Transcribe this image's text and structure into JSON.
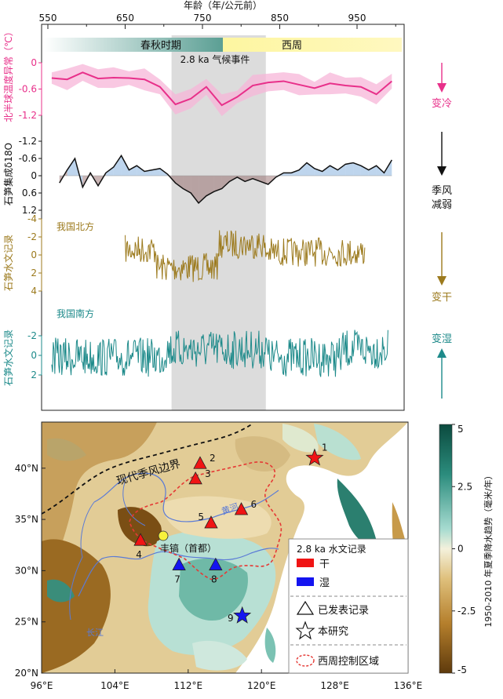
{
  "chart_data": {
    "type": "line",
    "top_axis": {
      "label": "年龄（年/公元前）",
      "ticks": [
        550,
        650,
        750,
        850,
        950
      ],
      "range": [
        550,
        1000
      ]
    },
    "periods": [
      {
        "name": "春秋时期",
        "from": 555,
        "to": 770,
        "color": "#5b9f94"
      },
      {
        "name": "西周",
        "from": 770,
        "to": 1000,
        "color": "#fdf6a0"
      }
    ],
    "event": {
      "label": "2.8 ka 气候事件",
      "from": 710,
      "to": 832
    },
    "panels": [
      {
        "id": "temp",
        "ylabel": "北半球温度异常（℃）",
        "ticks": [
          "0",
          "-0.6",
          "-1.2"
        ],
        "tick_values": [
          0,
          -0.6,
          -1.2
        ],
        "color": "#e8308a",
        "annotation": "变冷",
        "years": [
          555,
          575,
          595,
          615,
          635,
          655,
          675,
          695,
          715,
          735,
          755,
          775,
          795,
          815,
          835,
          855,
          875,
          895,
          915,
          935,
          955,
          975,
          995
        ],
        "values": [
          -0.35,
          -0.38,
          -0.22,
          -0.36,
          -0.34,
          -0.35,
          -0.38,
          -0.55,
          -0.95,
          -0.82,
          -0.55,
          -0.97,
          -0.78,
          -0.52,
          -0.45,
          -0.42,
          -0.5,
          -0.58,
          -0.47,
          -0.52,
          -0.55,
          -0.72,
          -0.42
        ]
      },
      {
        "id": "d18o",
        "ylabel": "石笋集成δ18O",
        "ticks": [
          "-1.2",
          "-0.6",
          "0",
          "0.6",
          "1.2"
        ],
        "tick_values": [
          -1.2,
          -0.6,
          0,
          0.6,
          1.2
        ],
        "color": "#111111",
        "annotation": "季风\n减弱",
        "years": [
          565,
          575,
          585,
          595,
          605,
          615,
          625,
          635,
          645,
          655,
          665,
          675,
          685,
          695,
          705,
          715,
          725,
          735,
          745,
          755,
          765,
          775,
          785,
          795,
          805,
          815,
          825,
          835,
          845,
          855,
          865,
          875,
          885,
          895,
          905,
          915,
          925,
          935,
          945,
          955,
          965,
          975,
          985,
          995
        ],
        "values": [
          0.25,
          -0.2,
          -0.6,
          0.4,
          -0.1,
          0.35,
          -0.1,
          -0.3,
          -0.7,
          -0.2,
          -0.35,
          -0.15,
          -0.2,
          -0.25,
          -0.05,
          0.25,
          0.45,
          0.6,
          0.95,
          0.7,
          0.55,
          0.45,
          0.2,
          0.05,
          0.2,
          0.1,
          0.2,
          0.3,
          0.05,
          -0.1,
          -0.1,
          -0.2,
          -0.45,
          -0.25,
          -0.15,
          -0.35,
          -0.2,
          -0.4,
          -0.45,
          -0.35,
          -0.2,
          -0.35,
          -0.1,
          -0.55
        ]
      },
      {
        "id": "north",
        "ylabel": "石笋水文记录",
        "series_label": "我国北方",
        "ticks": [
          "-4",
          "-2",
          "0",
          "2",
          "4"
        ],
        "tick_values": [
          -4,
          -2,
          0,
          2,
          4
        ],
        "color": "#9c7a1d",
        "annotation": "变干",
        "start_year": 650,
        "end_year": 960
      },
      {
        "id": "south",
        "ylabel": "石笋水文记录",
        "series_label": "我国南方",
        "ticks": [
          "-2",
          "0",
          "2"
        ],
        "tick_values": [
          -2,
          0,
          2
        ],
        "color": "#1d8a8a",
        "annotation": "变湿",
        "start_year": 555,
        "end_year": 990
      }
    ]
  },
  "map": {
    "x_ticks": [
      "96°E",
      "104°E",
      "112°E",
      "120°E",
      "128°E",
      "136°E"
    ],
    "y_ticks": [
      "40°N",
      "35°N",
      "30°N",
      "25°N",
      "20°N"
    ],
    "labels": {
      "monsoon": "现代季风边界",
      "yellow_river": "黄河",
      "yangtze": "长江",
      "capital": "丰镐（首都）"
    },
    "sites": [
      {
        "id": "1",
        "label": "1",
        "type": "dry",
        "lon": 125.8,
        "lat": 41.0,
        "shape": "star"
      },
      {
        "id": "2",
        "label": "2",
        "type": "dry",
        "lon": 113.3,
        "lat": 40.5,
        "shape": "triangle"
      },
      {
        "id": "3",
        "label": "3",
        "type": "dry",
        "lon": 112.8,
        "lat": 39.0,
        "shape": "triangle"
      },
      {
        "id": "4",
        "label": "4",
        "type": "dry",
        "lon": 106.8,
        "lat": 33.0,
        "shape": "triangle"
      },
      {
        "id": "5",
        "label": "5",
        "type": "dry",
        "lon": 114.5,
        "lat": 34.7,
        "shape": "triangle"
      },
      {
        "id": "6",
        "label": "6",
        "type": "dry",
        "lon": 117.8,
        "lat": 36.0,
        "shape": "triangle"
      },
      {
        "id": "7",
        "label": "7",
        "type": "wet",
        "lon": 111.0,
        "lat": 30.6,
        "shape": "triangle"
      },
      {
        "id": "8",
        "label": "8",
        "type": "wet",
        "lon": 115.0,
        "lat": 30.6,
        "shape": "triangle"
      },
      {
        "id": "9",
        "label": "9",
        "type": "wet",
        "lon": 117.9,
        "lat": 25.6,
        "shape": "star"
      }
    ],
    "legend": {
      "title": "2.8 ka 水文记录",
      "dry": "干",
      "wet": "湿",
      "published": "已发表记录",
      "this_study": "本研究",
      "control": "西周控制区域"
    },
    "colorbar": {
      "label": "1950-2010 年夏季降水趋势（毫米/年）",
      "ticks": [
        "5",
        "2.5",
        "0",
        "-2.5",
        "-5"
      ],
      "colors": [
        "#0b4a3e",
        "#2b8c7d",
        "#8fd0c4",
        "#f4f1dc",
        "#dfc07c",
        "#b57f2c",
        "#5e3a0c"
      ]
    }
  }
}
